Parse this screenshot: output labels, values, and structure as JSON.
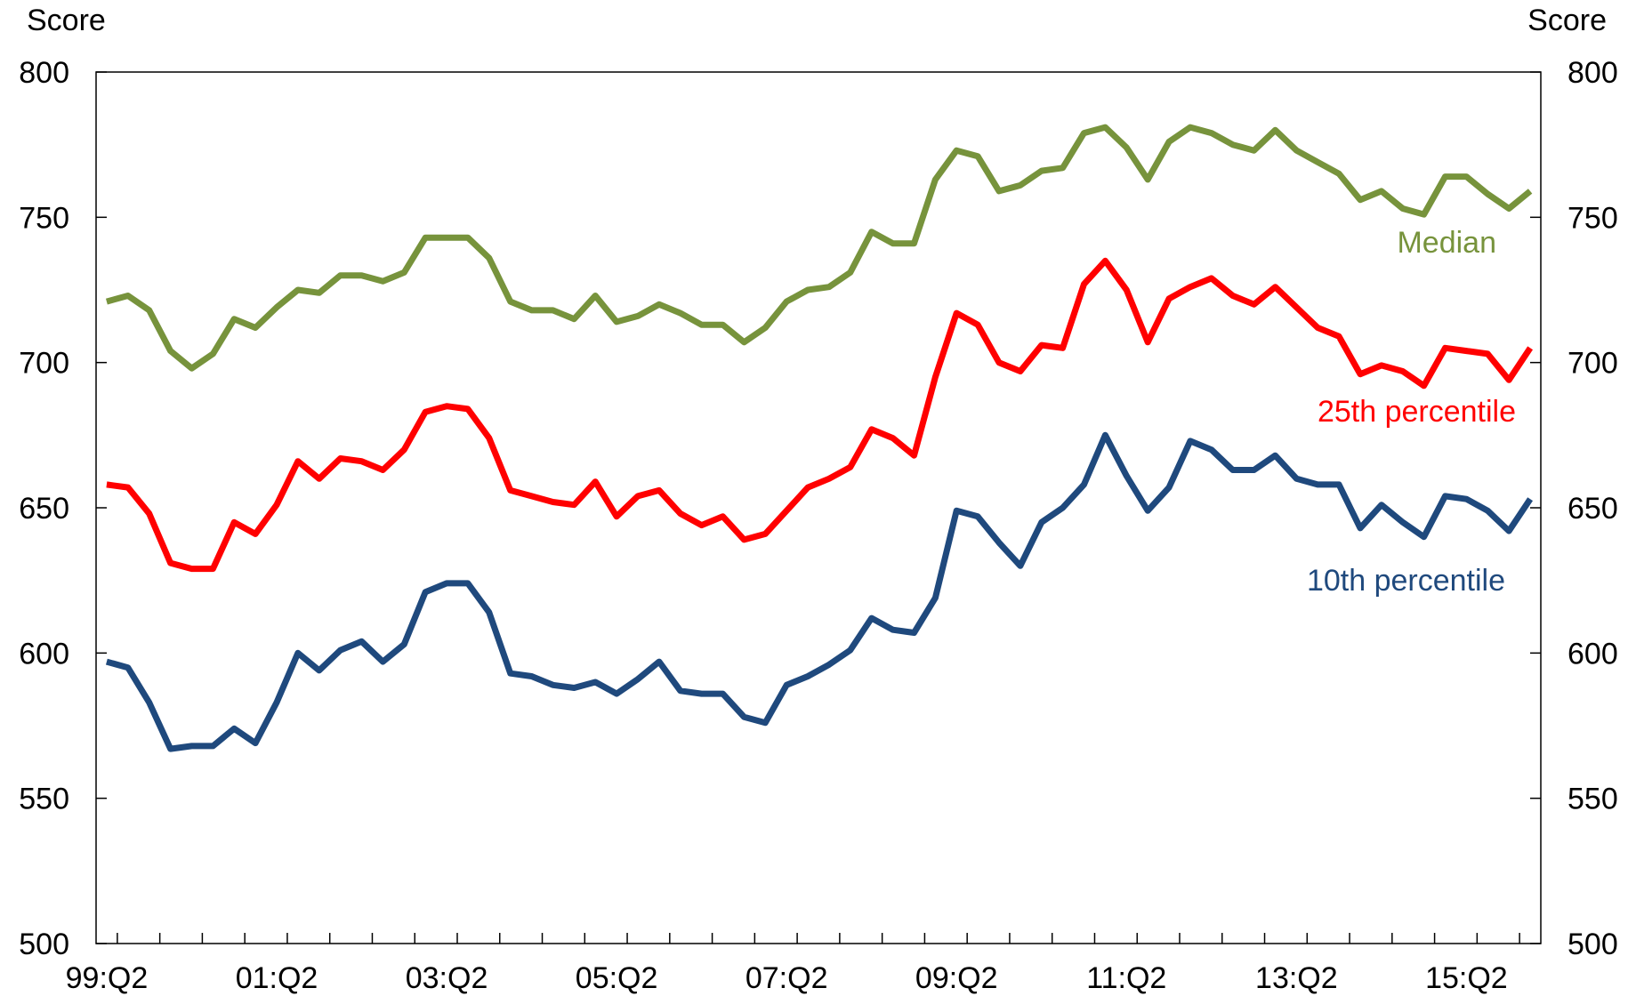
{
  "chart_data": {
    "type": "line",
    "ylabel_left": "Score",
    "ylabel_right": "Score",
    "ylim": [
      500,
      800
    ],
    "yticks": [
      500,
      550,
      600,
      650,
      700,
      750,
      800
    ],
    "x_start_quarter": "1999:Q2",
    "x_tick_labels": [
      "99:Q2",
      "01:Q2",
      "03:Q2",
      "05:Q2",
      "07:Q2",
      "09:Q2",
      "11:Q2",
      "13:Q2",
      "15:Q2"
    ],
    "grid": false,
    "series": [
      {
        "name": "Median",
        "color": "#77933C",
        "values": [
          721,
          723,
          718,
          704,
          698,
          703,
          715,
          712,
          719,
          725,
          724,
          730,
          730,
          728,
          731,
          743,
          743,
          743,
          736,
          721,
          718,
          718,
          715,
          723,
          714,
          716,
          720,
          717,
          713,
          713,
          707,
          712,
          721,
          725,
          726,
          731,
          745,
          741,
          741,
          763,
          773,
          771,
          759,
          761,
          766,
          767,
          779,
          781,
          774,
          763,
          776,
          781,
          779,
          775,
          773,
          780,
          773,
          769,
          765,
          756,
          759,
          753,
          751,
          764,
          764,
          758,
          753,
          759
        ]
      },
      {
        "name": "25th percentile",
        "color": "#FF0000",
        "values": [
          658,
          657,
          648,
          631,
          629,
          629,
          645,
          641,
          651,
          666,
          660,
          667,
          666,
          663,
          670,
          683,
          685,
          684,
          674,
          656,
          654,
          652,
          651,
          659,
          647,
          654,
          656,
          648,
          644,
          647,
          639,
          641,
          649,
          657,
          660,
          664,
          677,
          674,
          668,
          695,
          717,
          713,
          700,
          697,
          706,
          705,
          727,
          735,
          725,
          707,
          722,
          726,
          729,
          723,
          720,
          726,
          719,
          712,
          709,
          696,
          699,
          697,
          692,
          705,
          704,
          703,
          694,
          705
        ]
      },
      {
        "name": "10th percentile",
        "color": "#1F497D",
        "values": [
          597,
          595,
          583,
          567,
          568,
          568,
          574,
          569,
          583,
          600,
          594,
          601,
          604,
          597,
          603,
          621,
          624,
          624,
          614,
          593,
          592,
          589,
          588,
          590,
          586,
          591,
          597,
          587,
          586,
          586,
          578,
          576,
          589,
          592,
          596,
          601,
          612,
          608,
          607,
          619,
          649,
          647,
          638,
          630,
          645,
          650,
          658,
          675,
          661,
          649,
          657,
          673,
          670,
          663,
          663,
          668,
          660,
          658,
          658,
          643,
          651,
          645,
          640,
          654,
          653,
          649,
          642,
          653
        ]
      }
    ]
  }
}
